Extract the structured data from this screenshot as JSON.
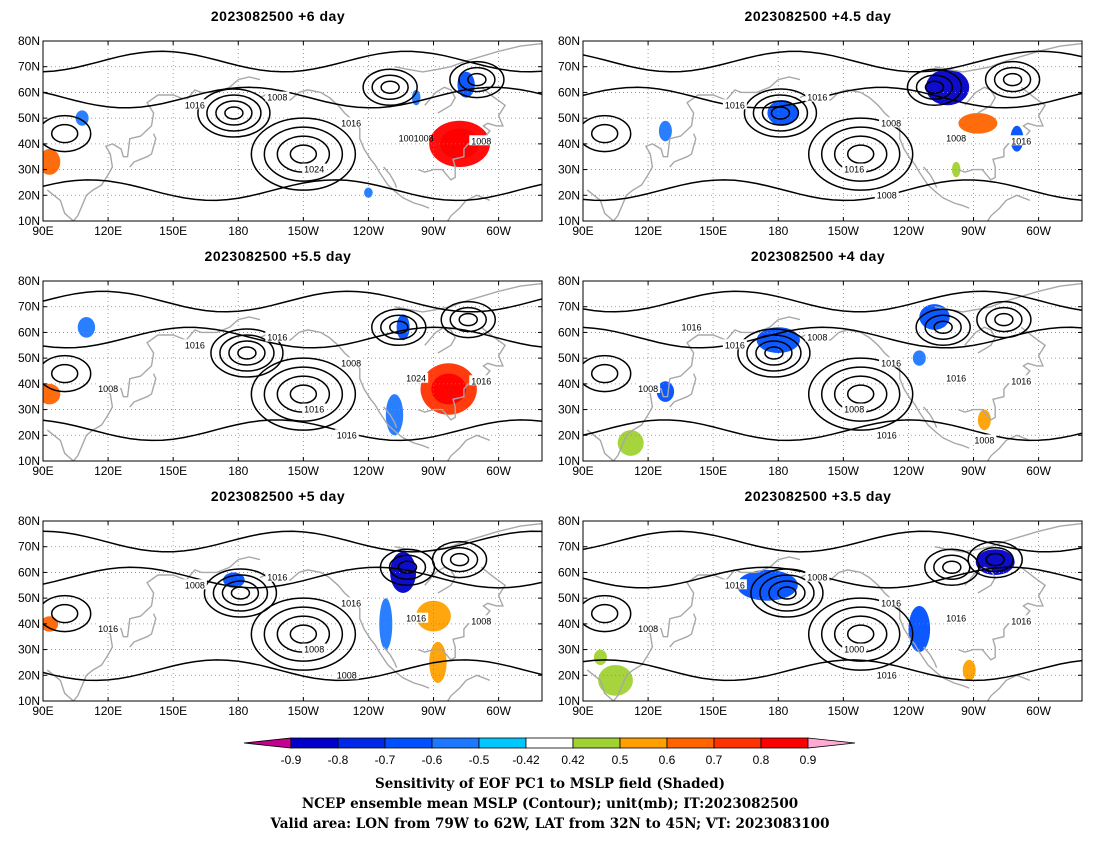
{
  "panels": [
    {
      "title": "2023082500  +6 day",
      "contour_labels": [
        "1016",
        "1008",
        "1016",
        "1024",
        "1001008",
        "1008"
      ],
      "shading": [
        {
          "lon": 282,
          "lat": 40,
          "rx": 14,
          "ry": 9,
          "value": 0.9
        },
        {
          "lon": 282,
          "lat": 40,
          "rx": 9,
          "ry": 6,
          "value": 0.9
        },
        {
          "lon": 93,
          "lat": 33,
          "rx": 5,
          "ry": 5,
          "value": 0.7
        },
        {
          "lon": 108,
          "lat": 50,
          "rx": 3,
          "ry": 3,
          "value": -0.5
        },
        {
          "lon": 285,
          "lat": 63,
          "rx": 4,
          "ry": 5,
          "value": -0.6
        },
        {
          "lon": 262,
          "lat": 58,
          "rx": 2,
          "ry": 3,
          "value": -0.5
        },
        {
          "lon": 240,
          "lat": 21,
          "rx": 2,
          "ry": 2,
          "value": -0.5
        }
      ]
    },
    {
      "title": "2023082500  +4.5 day",
      "contour_labels": [
        "1016",
        "1016",
        "1008",
        "1016",
        "1008",
        "1016",
        "1008"
      ],
      "shading": [
        {
          "lon": 258,
          "lat": 62,
          "rx": 10,
          "ry": 7,
          "value": -0.8
        },
        {
          "lon": 182,
          "lat": 52,
          "rx": 7,
          "ry": 5,
          "value": -0.6
        },
        {
          "lon": 272,
          "lat": 48,
          "rx": 9,
          "ry": 4,
          "value": 0.7
        },
        {
          "lon": 290,
          "lat": 42,
          "rx": 3,
          "ry": 5,
          "value": -0.6
        },
        {
          "lon": 128,
          "lat": 45,
          "rx": 3,
          "ry": 4,
          "value": -0.5
        },
        {
          "lon": 262,
          "lat": 30,
          "rx": 2,
          "ry": 3,
          "value": 0.5
        }
      ]
    },
    {
      "title": "2023082500  +5.5 day",
      "contour_labels": [
        "1016",
        "1016",
        "1008",
        "1016",
        "1024",
        "1016",
        "1016",
        "1008"
      ],
      "shading": [
        {
          "lon": 277,
          "lat": 38,
          "rx": 13,
          "ry": 10,
          "value": 0.8
        },
        {
          "lon": 277,
          "lat": 38,
          "rx": 8,
          "ry": 6,
          "value": 0.9
        },
        {
          "lon": 93,
          "lat": 36,
          "rx": 5,
          "ry": 4,
          "value": 0.7
        },
        {
          "lon": 256,
          "lat": 62,
          "rx": 3,
          "ry": 5,
          "value": -0.6
        },
        {
          "lon": 252,
          "lat": 28,
          "rx": 4,
          "ry": 8,
          "value": -0.5
        },
        {
          "lon": 110,
          "lat": 62,
          "rx": 4,
          "ry": 4,
          "value": -0.5
        }
      ]
    },
    {
      "title": "2023082500  +4 day",
      "contour_labels": [
        "1016",
        "1008",
        "1016",
        "1008",
        "1016",
        "1016",
        "1016",
        "1008",
        "1016",
        "1008"
      ],
      "shading": [
        {
          "lon": 180,
          "lat": 57,
          "rx": 10,
          "ry": 5,
          "value": -0.6
        },
        {
          "lon": 252,
          "lat": 66,
          "rx": 7,
          "ry": 5,
          "value": -0.6
        },
        {
          "lon": 112,
          "lat": 17,
          "rx": 6,
          "ry": 5,
          "value": 0.5
        },
        {
          "lon": 128,
          "lat": 37,
          "rx": 4,
          "ry": 4,
          "value": -0.6
        },
        {
          "lon": 275,
          "lat": 26,
          "rx": 3,
          "ry": 4,
          "value": 0.6
        },
        {
          "lon": 245,
          "lat": 50,
          "rx": 3,
          "ry": 3,
          "value": -0.5
        }
      ]
    },
    {
      "title": "2023082500  +5 day",
      "contour_labels": [
        "1008",
        "1016",
        "1016",
        "1008",
        "1016",
        "1008",
        "1008",
        "1016"
      ],
      "shading": [
        {
          "lon": 256,
          "lat": 60,
          "rx": 6,
          "ry": 8,
          "value": -0.8
        },
        {
          "lon": 270,
          "lat": 43,
          "rx": 8,
          "ry": 6,
          "value": 0.6
        },
        {
          "lon": 272,
          "lat": 25,
          "rx": 4,
          "ry": 8,
          "value": 0.6
        },
        {
          "lon": 248,
          "lat": 40,
          "rx": 3,
          "ry": 10,
          "value": -0.5
        },
        {
          "lon": 93,
          "lat": 40,
          "rx": 4,
          "ry": 3,
          "value": 0.7
        },
        {
          "lon": 178,
          "lat": 57,
          "rx": 5,
          "ry": 3,
          "value": -0.6
        }
      ]
    },
    {
      "title": "2023082500  +3.5 day",
      "contour_labels": [
        "1016",
        "1008",
        "1016",
        "1000",
        "1016",
        "1016",
        "1016",
        "1008"
      ],
      "shading": [
        {
          "lon": 175,
          "lat": 55,
          "rx": 14,
          "ry": 6,
          "value": -0.6
        },
        {
          "lon": 280,
          "lat": 64,
          "rx": 9,
          "ry": 5,
          "value": -0.8
        },
        {
          "lon": 245,
          "lat": 38,
          "rx": 5,
          "ry": 9,
          "value": -0.6
        },
        {
          "lon": 105,
          "lat": 18,
          "rx": 8,
          "ry": 6,
          "value": 0.5
        },
        {
          "lon": 268,
          "lat": 22,
          "rx": 3,
          "ry": 4,
          "value": 0.6
        },
        {
          "lon": 98,
          "lat": 27,
          "rx": 3,
          "ry": 3,
          "value": 0.5
        }
      ]
    }
  ],
  "axes": {
    "lat_labels": [
      "80N",
      "70N",
      "60N",
      "50N",
      "40N",
      "30N",
      "20N",
      "10N"
    ],
    "lon_labels": [
      "90E",
      "120E",
      "150E",
      "180",
      "150W",
      "120W",
      "90W",
      "60W"
    ],
    "lat_range": [
      10,
      80
    ],
    "lon_range": [
      90,
      320
    ]
  },
  "colorbar": {
    "labels": [
      "-0.9",
      "-0.8",
      "-0.7",
      "-0.6",
      "-0.5",
      "-0.42",
      "0.42",
      "0.5",
      "0.6",
      "0.7",
      "0.8",
      "0.9"
    ],
    "colors": [
      "#c40090",
      "#0000c8",
      "#0028e6",
      "#0050ff",
      "#1e78ff",
      "#00c8ff",
      "#ffffff",
      "#a0d232",
      "#ffa000",
      "#ff6400",
      "#ff3200",
      "#ff0000",
      "#ffaad2"
    ]
  },
  "caption": {
    "line1": "Sensitivity of EOF PC1 to MSLP field (Shaded)",
    "line2": "NCEP ensemble mean MSLP (Contour); unit(mb); IT:2023082500",
    "line3": "Valid area: LON from 79W to 62W, LAT from 32N to 45N; VT: 2023083100"
  }
}
